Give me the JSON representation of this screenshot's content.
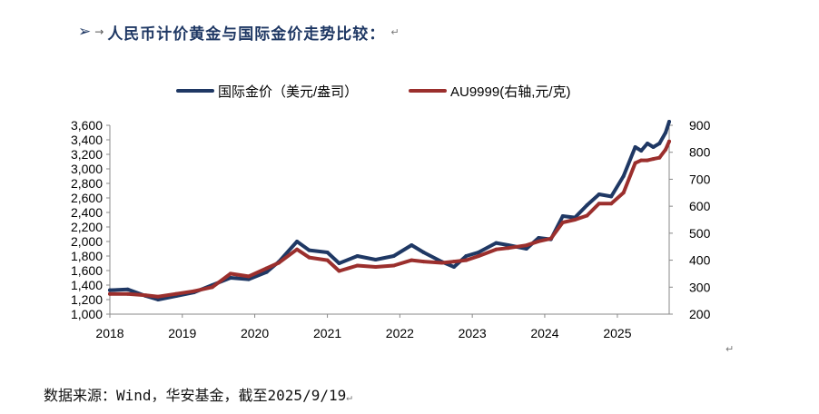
{
  "header": {
    "bullet": "➢",
    "arrow": "→",
    "title": "人民币计价黄金与国际金价走势比较：",
    "para_mark": "↵"
  },
  "footer": {
    "source": "数据来源：Wind，华安基金，截至2025/9/19",
    "para_mark": "↵"
  },
  "chart_data": {
    "type": "line",
    "x_label_ticks": [
      "2018",
      "2019",
      "2020",
      "2021",
      "2022",
      "2023",
      "2024",
      "2025"
    ],
    "xlim": [
      "2018-01-01",
      "2025-09-19"
    ],
    "y_left": {
      "ylim": [
        1000,
        3600
      ],
      "ticks": [
        "1,000",
        "1,200",
        "1,400",
        "1,600",
        "1,800",
        "2,000",
        "2,200",
        "2,400",
        "2,600",
        "2,800",
        "3,000",
        "3,200",
        "3,400",
        "3,600"
      ]
    },
    "y_right": {
      "ylim": [
        200,
        900
      ],
      "ticks": [
        "200",
        "300",
        "400",
        "500",
        "600",
        "700",
        "800",
        "900"
      ]
    },
    "legend_position": "top-center",
    "series": [
      {
        "name": "国际金价（美元/盎司）",
        "axis": "left",
        "color": "#1f3864",
        "x": [
          "2018-01-01",
          "2018-04-01",
          "2018-07-01",
          "2018-09-01",
          "2018-12-01",
          "2019-03-01",
          "2019-06-01",
          "2019-09-01",
          "2019-12-01",
          "2020-03-01",
          "2020-05-01",
          "2020-08-01",
          "2020-10-01",
          "2021-01-01",
          "2021-03-01",
          "2021-06-01",
          "2021-09-01",
          "2021-12-01",
          "2022-03-01",
          "2022-05-01",
          "2022-08-01",
          "2022-10-01",
          "2022-12-01",
          "2023-02-01",
          "2023-05-01",
          "2023-07-01",
          "2023-10-01",
          "2023-12-01",
          "2024-02-01",
          "2024-04-01",
          "2024-06-01",
          "2024-08-01",
          "2024-10-01",
          "2024-12-01",
          "2025-02-01",
          "2025-04-01",
          "2025-05-01",
          "2025-06-01",
          "2025-07-01",
          "2025-08-01",
          "2025-09-01",
          "2025-09-19"
        ],
        "y": [
          1330,
          1340,
          1250,
          1200,
          1250,
          1300,
          1400,
          1500,
          1480,
          1580,
          1720,
          2000,
          1880,
          1850,
          1700,
          1800,
          1750,
          1800,
          1950,
          1850,
          1720,
          1650,
          1800,
          1850,
          1980,
          1950,
          1900,
          2050,
          2030,
          2350,
          2330,
          2500,
          2650,
          2620,
          2900,
          3300,
          3250,
          3350,
          3300,
          3350,
          3500,
          3650
        ]
      },
      {
        "name": "AU9999(右轴,元/克)",
        "axis": "right",
        "color": "#9b2f2d",
        "x": [
          "2018-01-01",
          "2018-04-01",
          "2018-07-01",
          "2018-09-01",
          "2018-12-01",
          "2019-03-01",
          "2019-06-01",
          "2019-09-01",
          "2019-12-01",
          "2020-03-01",
          "2020-05-01",
          "2020-08-01",
          "2020-10-01",
          "2021-01-01",
          "2021-03-01",
          "2021-06-01",
          "2021-09-01",
          "2021-12-01",
          "2022-03-01",
          "2022-05-01",
          "2022-08-01",
          "2022-10-01",
          "2022-12-01",
          "2023-02-01",
          "2023-05-01",
          "2023-07-01",
          "2023-10-01",
          "2023-12-01",
          "2024-02-01",
          "2024-04-01",
          "2024-06-01",
          "2024-08-01",
          "2024-10-01",
          "2024-12-01",
          "2025-02-01",
          "2025-04-01",
          "2025-05-01",
          "2025-06-01",
          "2025-07-01",
          "2025-08-01",
          "2025-09-01",
          "2025-09-19"
        ],
        "y": [
          275,
          275,
          270,
          265,
          275,
          285,
          300,
          350,
          340,
          370,
          390,
          440,
          410,
          400,
          360,
          380,
          375,
          380,
          400,
          395,
          390,
          395,
          400,
          415,
          440,
          445,
          455,
          470,
          480,
          540,
          550,
          565,
          610,
          610,
          650,
          760,
          770,
          770,
          775,
          780,
          810,
          840
        ]
      }
    ]
  }
}
